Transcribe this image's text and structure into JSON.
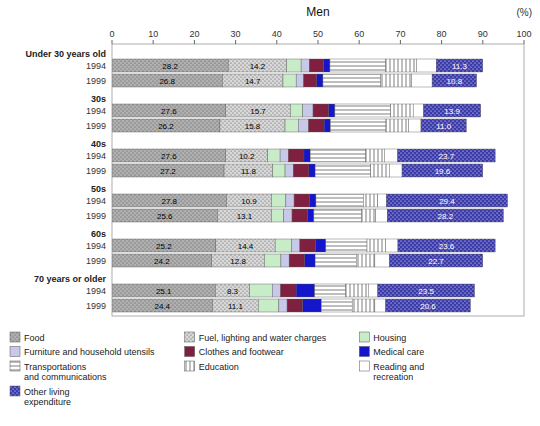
{
  "chart_data": {
    "type": "bar",
    "orientation": "horizontal",
    "stacked": true,
    "grid": false,
    "xlabel": "Men",
    "annotations": [
      "(%)"
    ],
    "category_groups": [
      "Under 30 years old",
      "30s",
      "40s",
      "50s",
      "60s",
      "70 years or older"
    ],
    "categories": [
      "1994",
      "1999",
      "1994",
      "1999",
      "1994",
      "1999",
      "1994",
      "1999",
      "1994",
      "1999",
      "1994",
      "1999"
    ],
    "xlim": [
      0,
      100
    ],
    "xticks": [
      0,
      10,
      20,
      30,
      40,
      50,
      60,
      70,
      80,
      90,
      100
    ],
    "series": [
      {
        "name": "Food",
        "color": "#b0b0b0",
        "data_labels": true,
        "values": [
          28.2,
          26.8,
          27.6,
          26.2,
          27.6,
          27.2,
          27.8,
          25.6,
          25.2,
          24.2,
          25.1,
          24.4
        ],
        "value_labels": [
          "28.2",
          "26.8",
          "27.6",
          "26.2",
          "27.6",
          "27.2",
          "27.8",
          "25.6",
          "25.2",
          "24.2",
          "25.1",
          "24.4"
        ]
      },
      {
        "name": "Fuel, lighting and water charges",
        "color": "#d8d8d8",
        "data_labels": true,
        "values": [
          14.2,
          14.7,
          15.7,
          15.8,
          10.2,
          11.8,
          10.9,
          13.1,
          14.4,
          12.8,
          8.3,
          11.1
        ],
        "value_labels": [
          "14.2",
          "14.7",
          "15.7",
          "15.8",
          "10.2",
          "11.8",
          "10.9",
          "13.1",
          "14.4",
          "12.8",
          "8.3",
          "11.1"
        ]
      },
      {
        "name": "Housing",
        "color": "#c8ecc8",
        "values": [
          3.5,
          3.2,
          3.0,
          3.2,
          3.0,
          3.0,
          3.5,
          3.0,
          4.0,
          4.0,
          5.5,
          5.0
        ]
      },
      {
        "name": "Furniture and household utensils",
        "color": "#c8c8e8",
        "values": [
          2.0,
          1.8,
          2.5,
          2.5,
          2.0,
          2.0,
          2.0,
          2.0,
          2.0,
          2.0,
          2.0,
          2.0
        ]
      },
      {
        "name": "Clothes and footwear",
        "color": "#802040",
        "values": [
          3.5,
          3.2,
          3.8,
          3.8,
          3.8,
          3.8,
          3.8,
          3.8,
          3.8,
          3.8,
          3.8,
          3.8
        ]
      },
      {
        "name": "Medical care",
        "color": "#1515cc",
        "values": [
          1.5,
          1.5,
          1.5,
          1.5,
          1.5,
          1.5,
          1.5,
          1.5,
          2.5,
          2.5,
          4.5,
          4.5
        ]
      },
      {
        "name": "Transportations\nand communications",
        "color": "#ffffff",
        "values": [
          13.5,
          14.0,
          13.5,
          13.5,
          13.5,
          13.5,
          11.5,
          11.5,
          10.0,
          10.0,
          7.5,
          7.5
        ]
      },
      {
        "name": "Education",
        "color": "#ffffff",
        "values": [
          7.5,
          7.5,
          5.5,
          5.5,
          4.5,
          4.5,
          3.5,
          3.5,
          4.5,
          4.5,
          5.5,
          5.5
        ]
      },
      {
        "name": "Reading and\nrecreation",
        "color": "#ffffff",
        "values": [
          4.8,
          5.0,
          2.5,
          3.0,
          3.2,
          3.1,
          2.1,
          2.8,
          3.0,
          3.5,
          2.3,
          2.6
        ]
      },
      {
        "name": "Other living\nexpenditure",
        "color": "#3a3aaa",
        "data_labels": true,
        "values": [
          11.3,
          10.8,
          13.9,
          11.0,
          23.7,
          19.6,
          29.4,
          28.2,
          23.6,
          22.7,
          23.5,
          20.6
        ],
        "value_labels": [
          "11.3",
          "10.8",
          "13.9",
          "11.0",
          "23.7",
          "19.6",
          "29.4",
          "28.2",
          "23.6",
          "22.7",
          "23.5",
          "20.6"
        ]
      }
    ]
  }
}
